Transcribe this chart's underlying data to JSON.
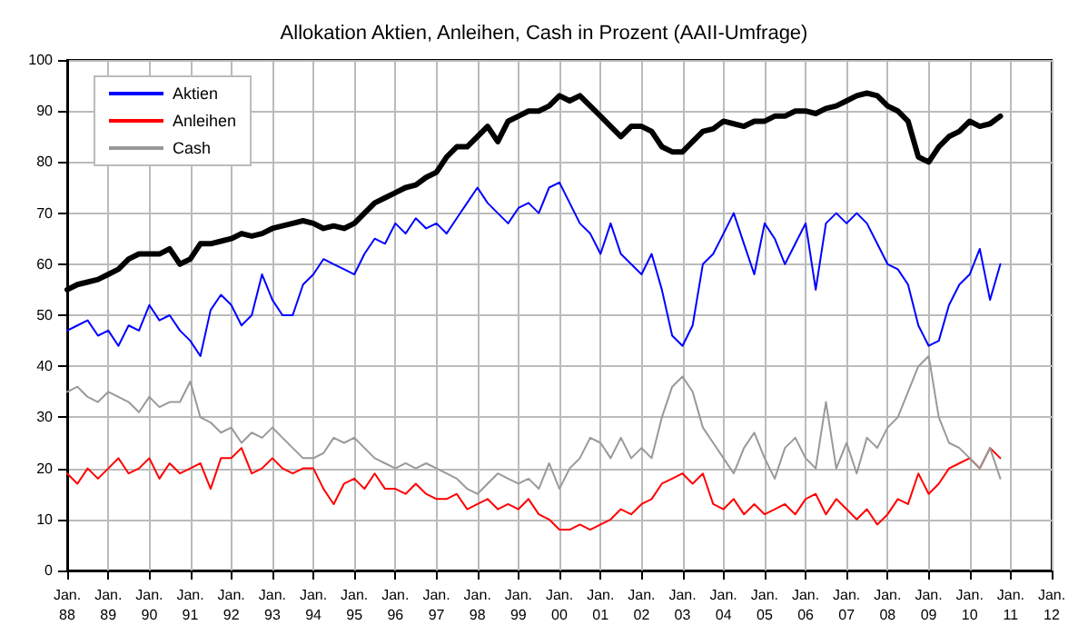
{
  "chart_data": {
    "type": "line",
    "title": "Allokation Aktien, Anleihen, Cash in Prozent (AAII-Umfrage)",
    "x": [
      "1988-01",
      "1988-04",
      "1988-07",
      "1988-10",
      "1989-01",
      "1989-04",
      "1989-07",
      "1989-10",
      "1990-01",
      "1990-04",
      "1990-07",
      "1990-10",
      "1991-01",
      "1991-04",
      "1991-07",
      "1991-10",
      "1992-01",
      "1992-04",
      "1992-07",
      "1992-10",
      "1993-01",
      "1993-04",
      "1993-07",
      "1993-10",
      "1994-01",
      "1994-04",
      "1994-07",
      "1994-10",
      "1995-01",
      "1995-04",
      "1995-07",
      "1995-10",
      "1996-01",
      "1996-04",
      "1996-07",
      "1996-10",
      "1997-01",
      "1997-04",
      "1997-07",
      "1997-10",
      "1998-01",
      "1998-04",
      "1998-07",
      "1998-10",
      "1999-01",
      "1999-04",
      "1999-07",
      "1999-10",
      "2000-01",
      "2000-04",
      "2000-07",
      "2000-10",
      "2001-01",
      "2001-04",
      "2001-07",
      "2001-10",
      "2002-01",
      "2002-04",
      "2002-07",
      "2002-10",
      "2003-01",
      "2003-04",
      "2003-07",
      "2003-10",
      "2004-01",
      "2004-04",
      "2004-07",
      "2004-10",
      "2005-01",
      "2005-04",
      "2005-07",
      "2005-10",
      "2006-01",
      "2006-04",
      "2006-07",
      "2006-10",
      "2007-01",
      "2007-04",
      "2007-07",
      "2007-10",
      "2008-01",
      "2008-04",
      "2008-07",
      "2008-10",
      "2009-01",
      "2009-04",
      "2009-07",
      "2009-10",
      "2010-01",
      "2010-04",
      "2010-07",
      "2010-10"
    ],
    "series": [
      {
        "name": "Aktien",
        "color": "#0000ff",
        "values": [
          47,
          48,
          49,
          46,
          47,
          44,
          48,
          47,
          52,
          49,
          50,
          47,
          45,
          42,
          51,
          54,
          52,
          48,
          50,
          58,
          53,
          50,
          50,
          56,
          58,
          61,
          60,
          59,
          58,
          62,
          65,
          64,
          68,
          66,
          69,
          67,
          68,
          66,
          69,
          72,
          75,
          72,
          70,
          68,
          71,
          72,
          70,
          75,
          76,
          72,
          68,
          66,
          62,
          68,
          62,
          60,
          58,
          62,
          55,
          46,
          44,
          48,
          60,
          62,
          66,
          70,
          64,
          58,
          68,
          65,
          60,
          64,
          68,
          55,
          68,
          70,
          68,
          70,
          68,
          64,
          60,
          59,
          56,
          48,
          44,
          45,
          52,
          56,
          58,
          63,
          53,
          60
        ]
      },
      {
        "name": "Anleihen",
        "color": "#ff0000",
        "values": [
          19,
          17,
          20,
          18,
          20,
          22,
          19,
          20,
          22,
          18,
          21,
          19,
          20,
          21,
          16,
          22,
          22,
          24,
          19,
          20,
          22,
          20,
          19,
          20,
          20,
          16,
          13,
          17,
          18,
          16,
          19,
          16,
          16,
          15,
          17,
          15,
          14,
          14,
          15,
          12,
          13,
          14,
          12,
          13,
          12,
          14,
          11,
          10,
          8,
          8,
          9,
          8,
          9,
          10,
          12,
          11,
          13,
          14,
          17,
          18,
          19,
          17,
          19,
          13,
          12,
          14,
          11,
          13,
          11,
          12,
          13,
          11,
          14,
          15,
          11,
          14,
          12,
          10,
          12,
          9,
          11,
          14,
          13,
          19,
          15,
          17,
          20,
          21,
          22,
          20,
          24,
          22
        ]
      },
      {
        "name": "Cash",
        "color": "#999999",
        "values": [
          35,
          36,
          34,
          33,
          35,
          34,
          33,
          31,
          34,
          32,
          33,
          33,
          37,
          30,
          29,
          27,
          28,
          25,
          27,
          26,
          28,
          26,
          24,
          22,
          22,
          23,
          26,
          25,
          26,
          24,
          22,
          21,
          20,
          21,
          20,
          21,
          20,
          19,
          18,
          16,
          15,
          17,
          19,
          18,
          17,
          18,
          16,
          21,
          16,
          20,
          22,
          26,
          25,
          22,
          26,
          22,
          24,
          22,
          30,
          36,
          38,
          35,
          28,
          25,
          22,
          19,
          24,
          27,
          22,
          18,
          24,
          26,
          22,
          20,
          33,
          20,
          25,
          19,
          26,
          24,
          28,
          30,
          35,
          40,
          42,
          30,
          25,
          24,
          22,
          20,
          24,
          18
        ]
      },
      {
        "color": "#000000",
        "values": [
          55,
          56,
          56.5,
          57,
          58,
          59,
          61,
          62,
          62,
          62,
          63,
          60,
          61,
          64,
          64,
          64.5,
          65,
          66,
          65.5,
          66,
          67,
          67.5,
          68,
          68.5,
          68,
          67,
          67.5,
          67,
          68,
          70,
          72,
          73,
          74,
          75,
          75.5,
          77,
          78,
          81,
          83,
          83,
          85,
          87,
          84,
          88,
          89,
          90,
          90,
          91,
          93,
          92,
          93,
          91,
          89,
          87,
          85,
          87,
          87,
          86,
          83,
          82,
          82,
          84,
          86,
          86.5,
          88,
          87.5,
          87,
          88,
          88,
          89,
          89,
          90,
          90,
          89.5,
          90.5,
          91,
          92,
          93,
          93.5,
          93,
          91,
          90,
          88,
          81,
          80,
          83,
          85,
          86,
          88,
          87,
          87.5,
          89
        ]
      }
    ],
    "xlim": [
      "1988-01",
      "2012-01"
    ],
    "xticks": [
      {
        "value": "1988-01",
        "label": "Jan.\n88"
      },
      {
        "value": "1989-01",
        "label": "Jan.\n89"
      },
      {
        "value": "1990-01",
        "label": "Jan.\n90"
      },
      {
        "value": "1991-01",
        "label": "Jan.\n91"
      },
      {
        "value": "1992-01",
        "label": "Jan.\n92"
      },
      {
        "value": "1993-01",
        "label": "Jan.\n93"
      },
      {
        "value": "1994-01",
        "label": "Jan.\n94"
      },
      {
        "value": "1995-01",
        "label": "Jan.\n95"
      },
      {
        "value": "1996-01",
        "label": "Jan.\n96"
      },
      {
        "value": "1997-01",
        "label": "Jan.\n97"
      },
      {
        "value": "1998-01",
        "label": "Jan.\n98"
      },
      {
        "value": "1999-01",
        "label": "Jan.\n99"
      },
      {
        "value": "2000-01",
        "label": "Jan.\n00"
      },
      {
        "value": "2001-01",
        "label": "Jan.\n01"
      },
      {
        "value": "2002-01",
        "label": "Jan.\n02"
      },
      {
        "value": "2003-01",
        "label": "Jan.\n03"
      },
      {
        "value": "2004-01",
        "label": "Jan.\n04"
      },
      {
        "value": "2005-01",
        "label": "Jan.\n05"
      },
      {
        "value": "2006-01",
        "label": "Jan.\n06"
      },
      {
        "value": "2007-01",
        "label": "Jan.\n07"
      },
      {
        "value": "2008-01",
        "label": "Jan.\n08"
      },
      {
        "value": "2009-01",
        "label": "Jan.\n09"
      },
      {
        "value": "2010-01",
        "label": "Jan.\n10"
      },
      {
        "value": "2011-01",
        "label": "Jan.\n11"
      },
      {
        "value": "2012-01",
        "label": "Jan.\n12"
      }
    ],
    "ylim": [
      0,
      100
    ],
    "yticks": [
      0,
      10,
      20,
      30,
      40,
      50,
      60,
      70,
      80,
      90,
      100
    ],
    "grid": true,
    "legend": "top left"
  }
}
